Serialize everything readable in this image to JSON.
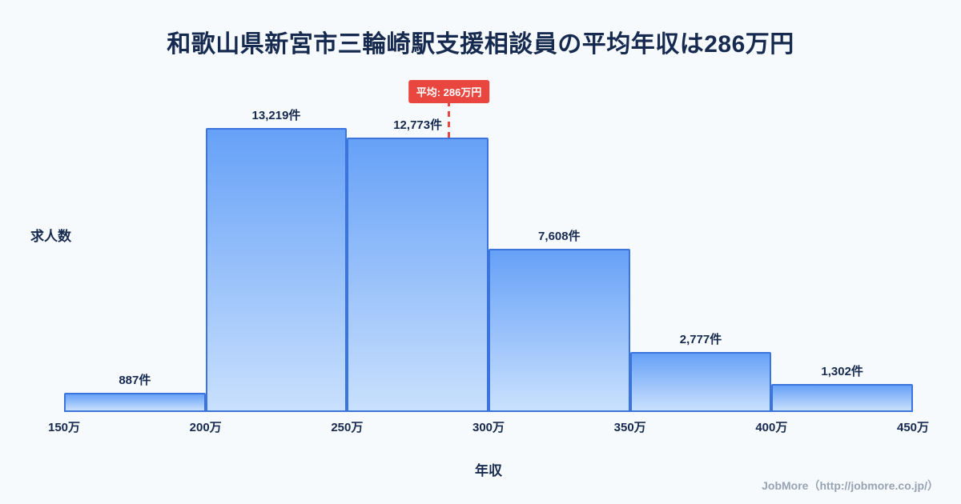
{
  "page": {
    "background": "#f7fafd"
  },
  "title": "和歌山県新宮市三輪崎駅支援相談員の平均年収は286万円",
  "chart_data": {
    "type": "bar",
    "title": "和歌山県新宮市三輪崎駅支援相談員の平均年収は286万円",
    "xlabel": "年収",
    "ylabel": "求人数",
    "x_ticks": [
      "150万",
      "200万",
      "250万",
      "300万",
      "350万",
      "400万",
      "450万"
    ],
    "x_tick_values": [
      150,
      200,
      250,
      300,
      350,
      400,
      450
    ],
    "x_range": [
      150,
      450
    ],
    "values": [
      887,
      13219,
      12773,
      7608,
      2777,
      1302
    ],
    "value_labels": [
      "887件",
      "13,219件",
      "12,773件",
      "7,608件",
      "2,777件",
      "1,302件"
    ],
    "ylim": [
      0,
      13219
    ],
    "grid": false,
    "legend": false,
    "average": {
      "value": 286,
      "label": "平均: 286万円"
    },
    "colors": {
      "bar_top": "#66a1f7",
      "bar_bottom": "#c9e0fd",
      "bar_border": "#3b74dd",
      "average": "#e8463f",
      "text": "#16294f"
    }
  },
  "footer": {
    "credit": "JobMore（http://jobmore.co.jp/）"
  }
}
